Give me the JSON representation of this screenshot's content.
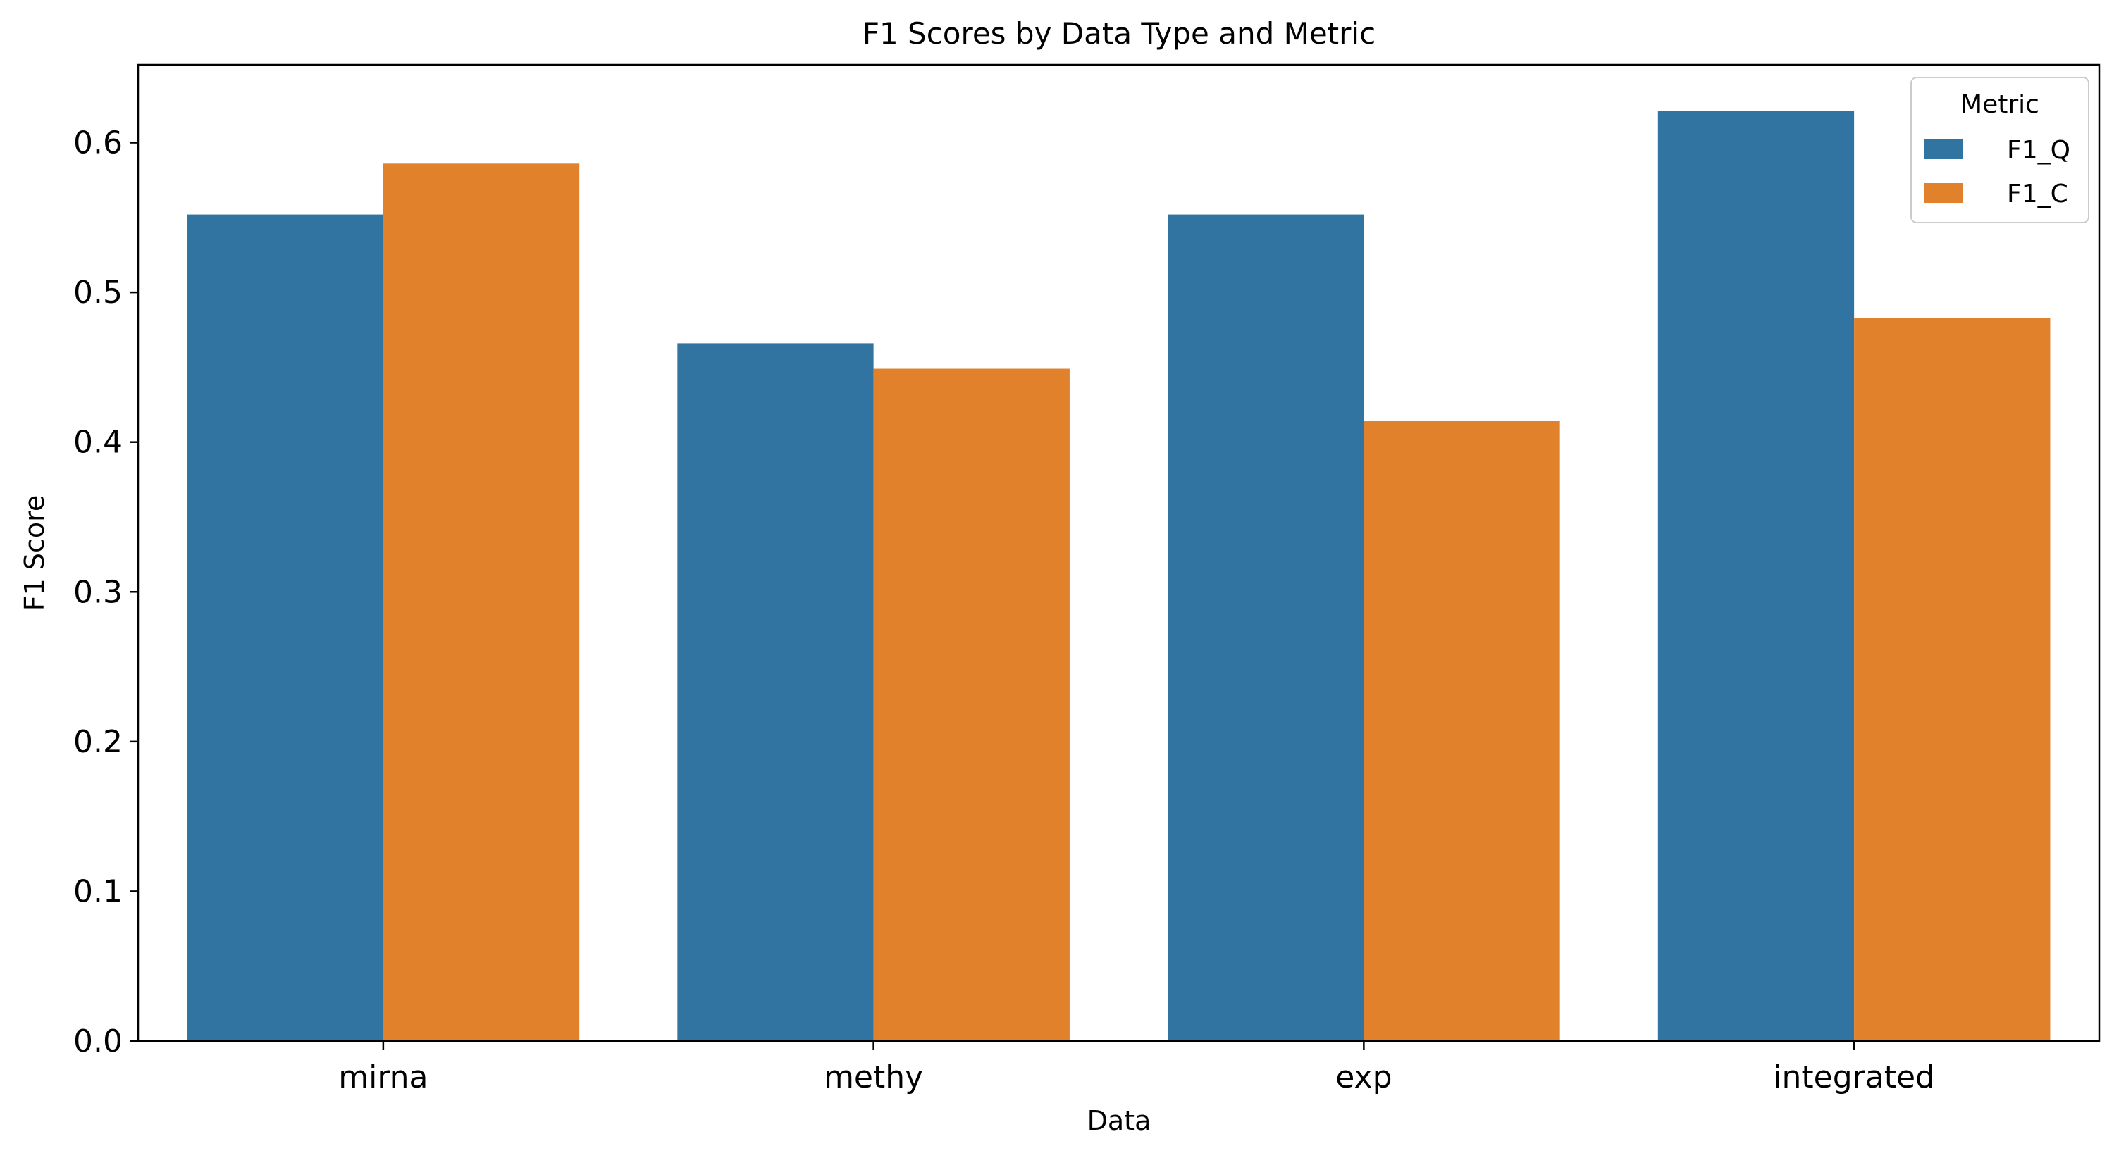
{
  "chart_data": {
    "type": "bar",
    "title": "F1 Scores by Data Type and Metric",
    "xlabel": "Data",
    "ylabel": "F1 Score",
    "categories": [
      "mirna",
      "methy",
      "exp",
      "integrated"
    ],
    "series": [
      {
        "name": "F1_Q",
        "color": "#3274a1",
        "values": [
          0.552,
          0.466,
          0.552,
          0.621
        ]
      },
      {
        "name": "F1_C",
        "color": "#e1812c",
        "values": [
          0.586,
          0.449,
          0.414,
          0.483
        ]
      }
    ],
    "ylim": [
      0,
      0.652
    ],
    "yticks": [
      0.0,
      0.1,
      0.2,
      0.3,
      0.4,
      0.5,
      0.6
    ],
    "ytick_labels": [
      "0.0",
      "0.1",
      "0.2",
      "0.3",
      "0.4",
      "0.5",
      "0.6"
    ],
    "grid": false,
    "legend": {
      "title": "Metric",
      "position": "top-right"
    }
  }
}
